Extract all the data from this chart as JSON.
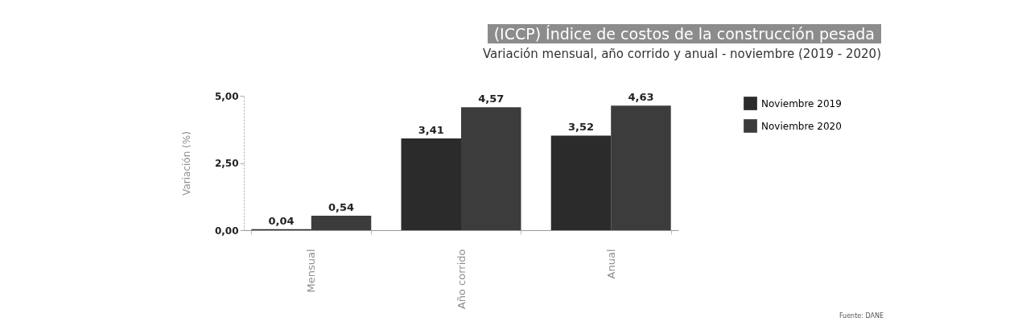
{
  "chart_data": {
    "type": "bar",
    "title": "(ICCP) Índice de costos de la construcción pesada",
    "subtitle": "Variación mensual, año corrido y anual - noviembre (2019 - 2020)",
    "ylabel": "Variación (%)",
    "categories": [
      "Mensual",
      "Año corrido",
      "Anual"
    ],
    "series": [
      {
        "name": "Noviembre 2019",
        "color": "#2b2b2b",
        "values": [
          0.04,
          3.41,
          3.52
        ],
        "value_labels": [
          "0,04",
          "3,41",
          "3,52"
        ]
      },
      {
        "name": "Noviembre 2020",
        "color": "#3c3c3c",
        "values": [
          0.54,
          4.57,
          4.63
        ],
        "value_labels": [
          "0,54",
          "4,57",
          "4,63"
        ]
      }
    ],
    "ylim": [
      0,
      5
    ],
    "yticks": [
      {
        "value": 0,
        "label": "0,00"
      },
      {
        "value": 2.5,
        "label": "2,50"
      },
      {
        "value": 5,
        "label": "5,00"
      }
    ],
    "grid": false,
    "legend": "right",
    "annotations": [
      "Fuente: DANE"
    ]
  }
}
